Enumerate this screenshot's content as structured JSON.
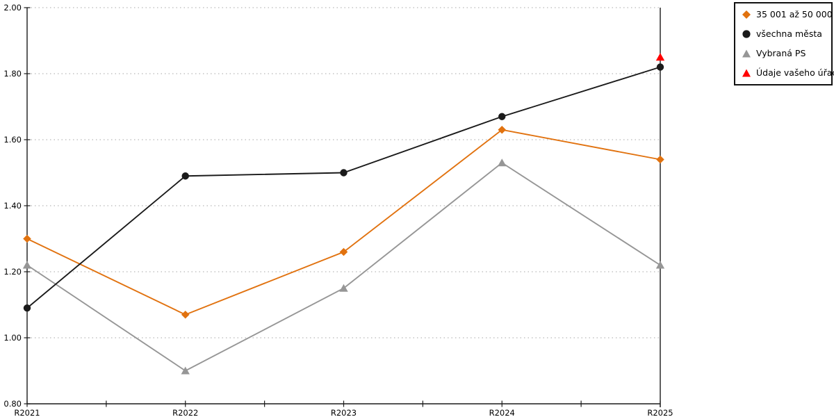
{
  "chart_data": {
    "type": "line",
    "title": "",
    "xlabel": "",
    "ylabel": "",
    "categories": [
      "R2021",
      "R2022",
      "R2023",
      "R2024",
      "R2025"
    ],
    "series": [
      {
        "name": "35 001 až 50 000",
        "marker": "diamond",
        "color": "#E1720F",
        "values": [
          1.3,
          1.07,
          1.26,
          1.63,
          1.54
        ]
      },
      {
        "name": "všechna města",
        "marker": "circle",
        "color": "#1A1A1A",
        "values": [
          1.09,
          1.49,
          1.5,
          1.67,
          1.82
        ]
      },
      {
        "name": "Vybraná PS",
        "marker": "triangle",
        "color": "#969696",
        "values": [
          1.22,
          0.9,
          1.15,
          1.53,
          1.22
        ]
      },
      {
        "name": "Údaje vašeho úřadu",
        "marker": "triangle",
        "color": "#FF0000",
        "values": [
          null,
          null,
          null,
          null,
          1.85
        ]
      }
    ],
    "ylim": [
      0.8,
      2.0
    ],
    "yticks": [
      0.8,
      1.0,
      1.2,
      1.4,
      1.6,
      1.8,
      2.0
    ],
    "ytick_format": "0.00",
    "x_minor_ticks": "midpoints between categories",
    "grid": "horizontal dotted",
    "right_frame_line_at": "R2025",
    "legend_position": "outside top-right, boxed"
  },
  "colors": {
    "axis": "#1a1a1a",
    "gridline": "#b8b8b8",
    "tick_label": "#000000",
    "background": "#ffffff"
  }
}
